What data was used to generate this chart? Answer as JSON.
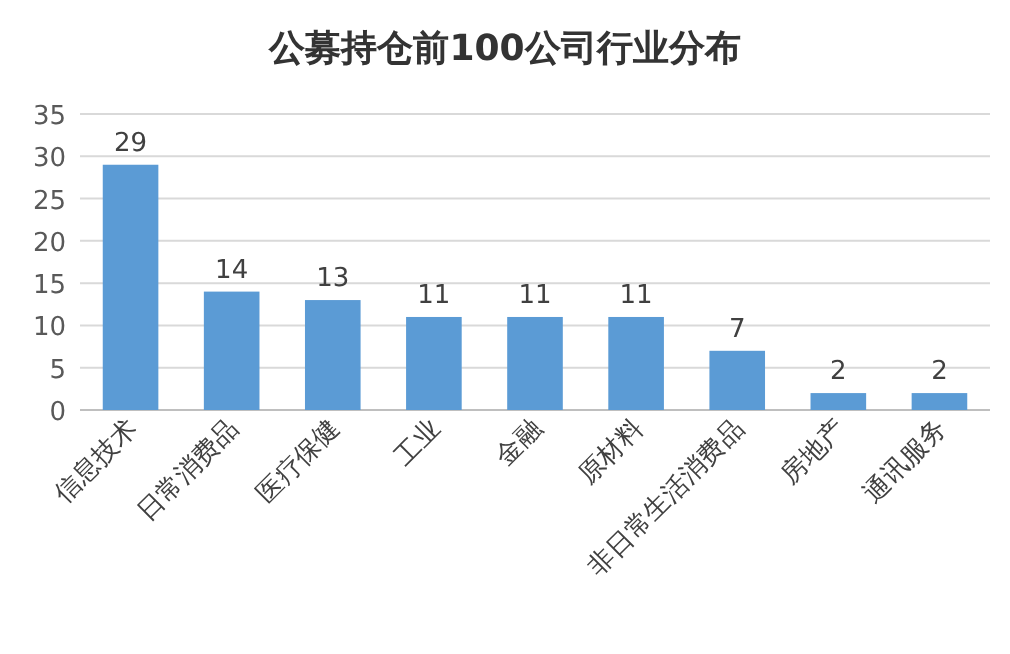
{
  "chart_data": {
    "type": "bar",
    "title": "公募持仓前100公司行业分布",
    "categories": [
      "信息技术",
      "日常消费品",
      "医疗保健",
      "工业",
      "金融",
      "原材料",
      "非日常生活消费品",
      "房地产",
      "通讯服务"
    ],
    "values": [
      29,
      14,
      13,
      11,
      11,
      11,
      7,
      2,
      2
    ],
    "color": "#5b9bd5",
    "ylim": [
      0,
      35
    ],
    "yticks": [
      0,
      5,
      10,
      15,
      20,
      25,
      30,
      35
    ],
    "grid": "y",
    "data_labels": true
  }
}
